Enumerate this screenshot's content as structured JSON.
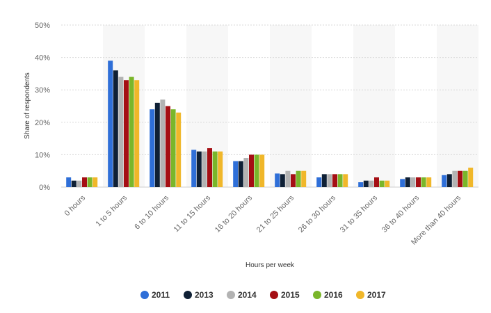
{
  "chart_data": {
    "type": "bar",
    "title": "",
    "xlabel": "Hours per week",
    "ylabel": "Share of respondents",
    "ylim": [
      0,
      50
    ],
    "yticks": [
      0,
      10,
      20,
      30,
      40,
      50
    ],
    "ytick_suffix": "%",
    "grid": true,
    "legend_position": "bottom",
    "categories": [
      "0 hours",
      "1 to 5 hours",
      "6 to 10 hours",
      "11 to 15 hours",
      "16 to 20 hours",
      "21 to 25 hours",
      "26 to 30 hours",
      "31 to 35 hours",
      "36 to 40 hours",
      "More than 40 hours"
    ],
    "series": [
      {
        "name": "2011",
        "color": "#2f6fd8",
        "values": [
          3,
          39,
          24,
          11.5,
          8,
          4.2,
          3,
          1.5,
          2.5,
          3.7
        ]
      },
      {
        "name": "2013",
        "color": "#0f2035",
        "values": [
          2,
          36,
          26,
          11,
          8,
          4,
          4,
          2,
          3,
          4
        ]
      },
      {
        "name": "2014",
        "color": "#b3b3b3",
        "values": [
          2,
          34,
          27,
          11,
          9,
          5,
          4,
          2,
          3,
          5
        ]
      },
      {
        "name": "2015",
        "color": "#a50f14",
        "values": [
          3,
          33,
          25,
          12,
          10,
          4,
          4,
          3,
          3,
          5
        ]
      },
      {
        "name": "2016",
        "color": "#7ab62a",
        "values": [
          3,
          34,
          24,
          11,
          10,
          5,
          4,
          2,
          3,
          5
        ]
      },
      {
        "name": "2017",
        "color": "#f0b72a",
        "values": [
          3,
          33,
          23,
          11,
          10,
          5,
          4,
          2,
          3,
          6
        ]
      }
    ]
  }
}
